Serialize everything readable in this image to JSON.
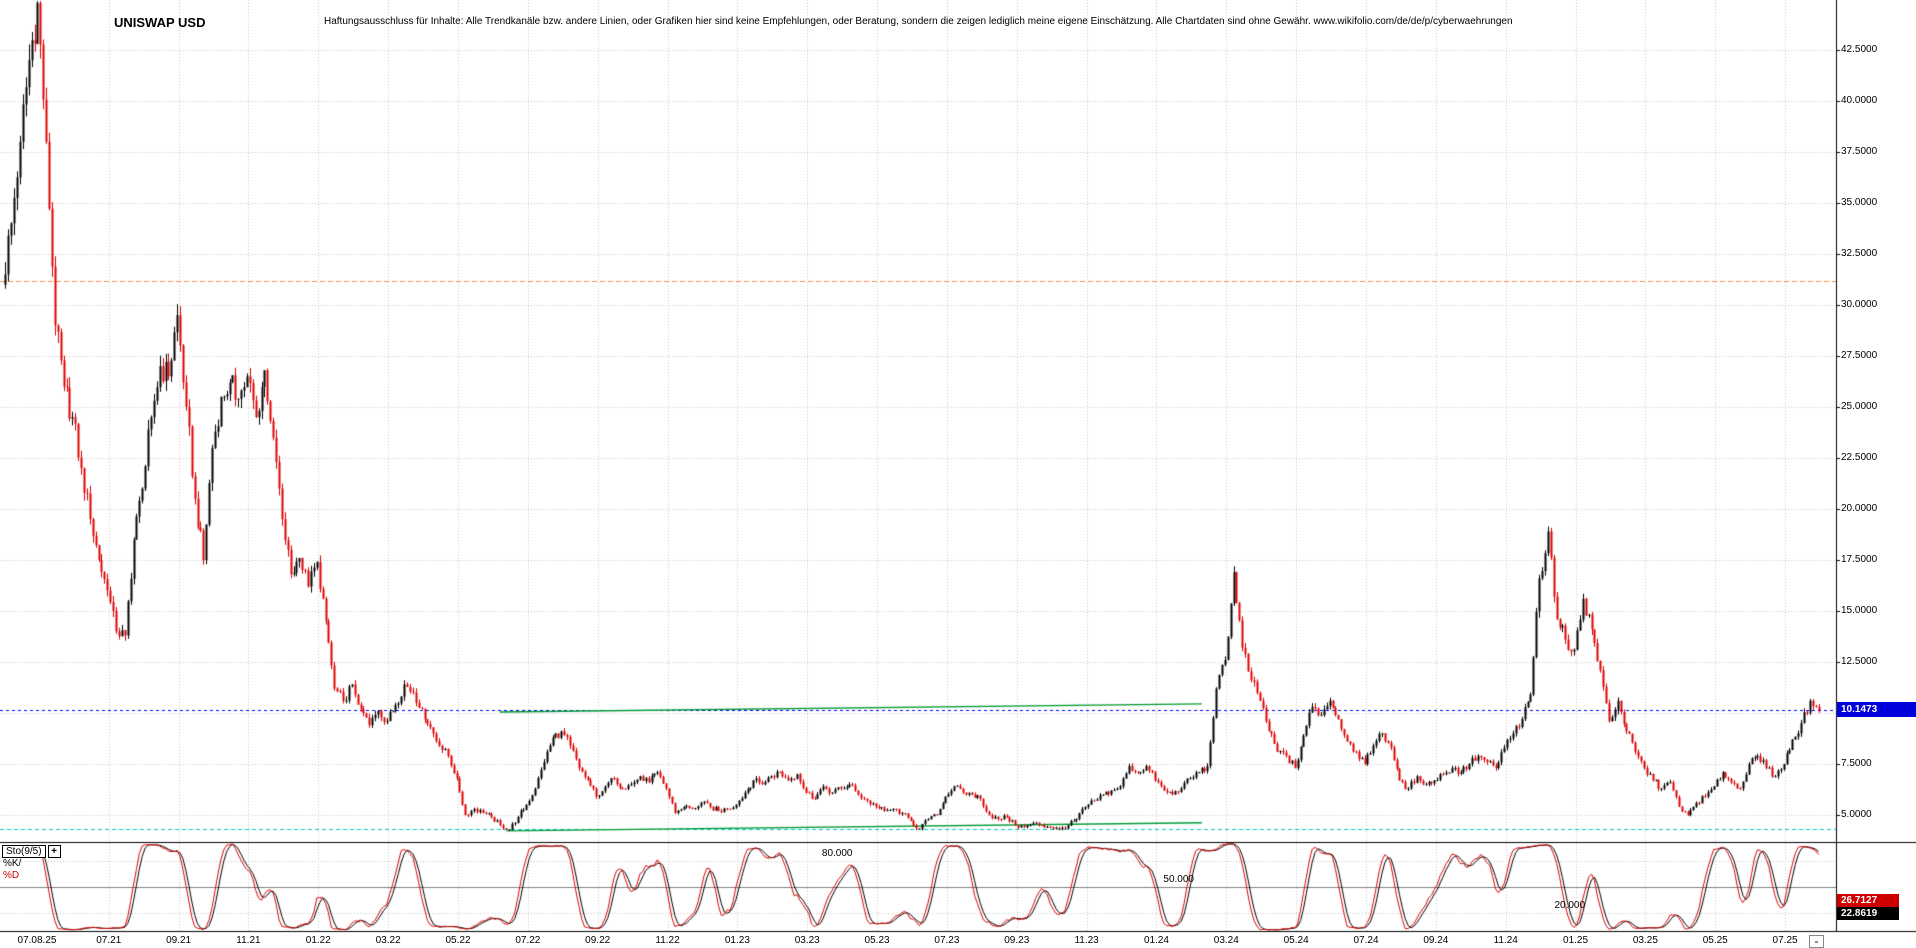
{
  "header": {
    "title": "UNISWAP USD",
    "disclaimer": "Haftungsausschluss für Inhalte: Alle Trendkanäle bzw. andere Linien, oder Grafiken hier sind keine Empfehlungen, oder Beratung, sondern die zeigen lediglich meine eigene Einschätzung. Alle Chartdaten sind ohne Gewähr.  www.wikifolio.com/de/de/p/cyberwaehrungen"
  },
  "price_axis": {
    "labels": [
      "42.5000",
      "40.0000",
      "37.5000",
      "35.0000",
      "32.5000",
      "30.0000",
      "27.5000",
      "25.0000",
      "22.5000",
      "20.0000",
      "17.5000",
      "15.0000",
      "12.5000",
      "7.5000",
      "5.0000"
    ],
    "current_price_label": "10.1473"
  },
  "x_axis": {
    "date_label": "07.08.25",
    "labels": [
      "07.21",
      "09.21",
      "11.21",
      "01.22",
      "03.22",
      "05.22",
      "07.22",
      "09.22",
      "11.22",
      "01.23",
      "03.23",
      "05.23",
      "07.23",
      "09.23",
      "11.23",
      "01.24",
      "03.24",
      "05.24",
      "07.24",
      "09.24",
      "11.24",
      "01.25",
      "03.25",
      "05.25",
      "07.25"
    ]
  },
  "indicator": {
    "name": "Sto(9/5)",
    "k_label": "%K/",
    "d_label": "%D",
    "k_value": "26.7127",
    "d_value": "22.8619",
    "levels": [
      {
        "label": "80.000",
        "value": 80
      },
      {
        "label": "50.000",
        "value": 50
      },
      {
        "label": "20.000",
        "value": 20
      }
    ]
  },
  "controls": {
    "expand": "+",
    "zoom_out": "-"
  },
  "colors": {
    "up_candle": "#000000",
    "down_candle": "#dd0000",
    "k_line": "#dd0000",
    "d_line": "#000000",
    "grid": "#c8c8c8",
    "sto_mid_line": "#808080",
    "resistance_line": "#ff8a50",
    "support_line": "#00cccc",
    "current_line": "#0000ff",
    "trendline": "#009933",
    "price_tag_bg": "#0000dd",
    "k_tag_bg": "#cc0000",
    "d_tag_bg": "#000000"
  },
  "chart_data": {
    "type": "candlestick",
    "title": "UNISWAP USD",
    "x_start_month": "04.2021",
    "x_end_date": "07.08.25",
    "ylim": [
      3.5,
      45
    ],
    "y_ticks": [
      5,
      7.5,
      10,
      12.5,
      15,
      17.5,
      20,
      22.5,
      25,
      27.5,
      30,
      32.5,
      35,
      37.5,
      40,
      42.5
    ],
    "current_price": 10.1473,
    "weekly_closes": [
      31,
      34,
      38,
      42,
      44.8,
      38,
      29,
      26,
      24.5,
      22,
      19.5,
      17.5,
      16,
      14,
      13.8,
      18.5,
      21,
      24.5,
      27,
      26.5,
      29.5,
      25,
      20.5,
      17.5,
      23,
      25.5,
      26.2,
      25.4,
      26.5,
      24.5,
      26.8,
      23.5,
      19.5,
      16.8,
      17.6,
      16.2,
      17.4,
      14.5,
      11.2,
      10.6,
      11.4,
      10.2,
      9.4,
      10.1,
      9.6,
      10.4,
      11.4,
      11.0,
      10.2,
      9.3,
      8.4,
      7.9,
      6.8,
      5.0,
      5.3,
      5.1,
      4.9,
      4.5,
      4.3,
      4.9,
      5.5,
      6.3,
      7.6,
      8.8,
      9.1,
      8.4,
      7.3,
      6.7,
      5.9,
      6.4,
      6.8,
      6.3,
      6.5,
      6.9,
      6.6,
      7.1,
      6.3,
      5.1,
      5.4,
      5.3,
      5.6,
      5.4,
      5.2,
      5.3,
      5.5,
      6.1,
      6.7,
      6.5,
      6.9,
      7.1,
      6.7,
      7.0,
      6.1,
      5.8,
      6.4,
      6.1,
      6.3,
      6.5,
      6.0,
      5.7,
      5.4,
      5.2,
      5.3,
      5.1,
      4.7,
      4.3,
      4.8,
      5.0,
      5.9,
      6.4,
      6.1,
      6.0,
      5.8,
      5.0,
      4.8,
      4.9,
      4.5,
      4.4,
      4.6,
      4.5,
      4.4,
      4.3,
      4.5,
      4.8,
      5.4,
      5.7,
      6.0,
      6.2,
      6.4,
      7.4,
      7.1,
      7.4,
      6.7,
      6.2,
      6.0,
      6.3,
      6.8,
      7.1,
      7.4,
      11.2,
      12.6,
      16.9,
      13.2,
      11.6,
      10.6,
      9.1,
      8.1,
      7.9,
      7.3,
      8.9,
      10.3,
      9.9,
      10.6,
      9.7,
      8.6,
      8.1,
      7.5,
      8.4,
      9.0,
      8.3,
      6.7,
      6.3,
      6.9,
      6.5,
      6.7,
      7.0,
      7.3,
      7.1,
      7.5,
      7.9,
      7.6,
      7.3,
      8.3,
      9.0,
      9.7,
      10.9,
      16.6,
      18.9,
      14.6,
      13.6,
      13.1,
      15.6,
      14.1,
      12.1,
      9.6,
      10.6,
      9.1,
      8.1,
      7.3,
      6.7,
      6.3,
      6.6,
      5.4,
      5.0,
      5.6,
      5.9,
      6.4,
      7.1,
      6.6,
      6.3,
      7.5,
      7.9,
      7.3,
      6.9,
      7.5,
      8.7,
      9.5,
      10.6,
      10.1473
    ],
    "overlay_lines": {
      "resistance": 31.2,
      "support": 4.3,
      "current": 10.1473
    },
    "trendlines": [
      {
        "start_month_index": 14.2,
        "start_price": 10.05,
        "end_month_index": 34.3,
        "end_price": 10.45
      },
      {
        "start_month_index": 14.4,
        "start_price": 4.22,
        "end_month_index": 34.3,
        "end_price": 4.62
      }
    ],
    "indicator": {
      "type": "stochastic",
      "params": "9/5",
      "k": 26.7127,
      "d": 22.8619,
      "levels": [
        80,
        50,
        20
      ]
    }
  }
}
